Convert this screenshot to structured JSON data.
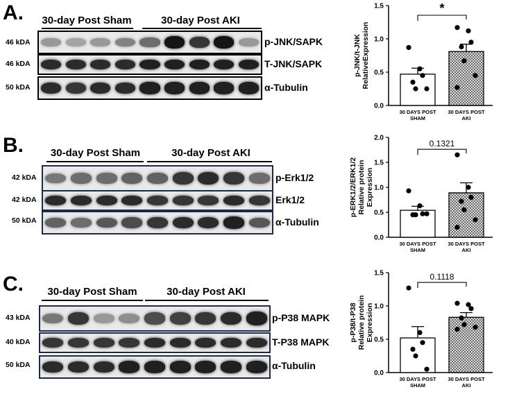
{
  "panels": [
    {
      "letter": "A.",
      "groups": [
        "30-day Post Sham",
        "30-day Post AKI"
      ],
      "blots": [
        {
          "kda": "46 kDA",
          "label": "p-JNK/SAPK",
          "intensities": [
            0.35,
            0.3,
            0.35,
            0.45,
            0.55,
            0.95,
            0.8,
            0.95,
            0.35
          ]
        },
        {
          "kda": "46 kDA",
          "label": "T-JNK/SAPK",
          "intensities": [
            0.85,
            0.85,
            0.85,
            0.85,
            0.9,
            0.9,
            0.9,
            0.9,
            0.9
          ]
        },
        {
          "kda": "50 kDA",
          "label": "α-Tubulin",
          "intensities": [
            0.85,
            0.8,
            0.85,
            0.85,
            0.9,
            0.9,
            0.9,
            0.9,
            0.9
          ]
        }
      ]
    },
    {
      "letter": "B.",
      "groups": [
        "30-day Post Sham",
        "30-day Post AKI"
      ],
      "blots": [
        {
          "kda": "42 kDA",
          "label": "p-Erk1/2",
          "intensities": [
            0.5,
            0.55,
            0.55,
            0.6,
            0.6,
            0.8,
            0.85,
            0.8,
            0.55
          ]
        },
        {
          "kda": "42 kDA",
          "label": "Erk1/2",
          "intensities": [
            0.85,
            0.85,
            0.85,
            0.85,
            0.8,
            0.8,
            0.8,
            0.85,
            0.8
          ]
        },
        {
          "kda": "50 kDA",
          "label": "α-Tubulin",
          "intensities": [
            0.6,
            0.55,
            0.65,
            0.7,
            0.8,
            0.85,
            0.85,
            0.9,
            0.65
          ]
        }
      ]
    },
    {
      "letter": "C.",
      "groups": [
        "30-day Post Sham",
        "30-day Post AKI"
      ],
      "blots": [
        {
          "kda": "43 kDA",
          "label": "p-P38 MAPK",
          "intensities": [
            0.5,
            0.8,
            0.35,
            0.4,
            0.7,
            0.75,
            0.8,
            0.85,
            0.9
          ]
        },
        {
          "kda": "40 kDA",
          "label": "T-P38 MAPK",
          "intensities": [
            0.8,
            0.8,
            0.8,
            0.8,
            0.85,
            0.85,
            0.85,
            0.85,
            0.85
          ]
        },
        {
          "kda": "50 kDA",
          "label": "α-Tubulin",
          "intensities": [
            0.85,
            0.85,
            0.85,
            0.9,
            0.9,
            0.9,
            0.9,
            0.9,
            0.9
          ]
        }
      ]
    }
  ],
  "chart_data": [
    {
      "type": "bar",
      "categories": [
        "30 DAYS POST SHAM",
        "30 DAYS POST AKI"
      ],
      "category_lines": [
        [
          "30 DAYS POST",
          "SHAM"
        ],
        [
          "30 DAYS POST",
          "AKI"
        ]
      ],
      "values": [
        0.47,
        0.81
      ],
      "errors": [
        0.09,
        0.11
      ],
      "points": [
        [
          0.87,
          0.55,
          0.45,
          0.35,
          0.25,
          0.25
        ],
        [
          1.17,
          1.12,
          0.95,
          0.88,
          0.67,
          0.45,
          0.27
        ]
      ],
      "ylabel_lines": [
        "p-JNK/t-JNK",
        "RelativeExpression"
      ],
      "ylim": [
        0,
        1.5
      ],
      "yticks": [
        0.0,
        0.5,
        1.0,
        1.5
      ],
      "ytick_labels": [
        "0.0",
        "0.5",
        "1.0",
        "1.5"
      ],
      "significance": "*",
      "fills": [
        "#ffffff",
        "hatch"
      ]
    },
    {
      "type": "bar",
      "categories": [
        "30 DAYS POST SHAM",
        "30 DAYS POST AKI"
      ],
      "category_lines": [
        [
          "30 DAYS POST",
          "SHAM"
        ],
        [
          "30 DAYS POST",
          "AKI"
        ]
      ],
      "values": [
        0.54,
        0.89
      ],
      "errors": [
        0.08,
        0.2
      ],
      "points": [
        [
          0.93,
          0.63,
          0.47,
          0.45,
          0.45,
          0.47
        ],
        [
          1.65,
          1.0,
          0.8,
          0.72,
          0.55,
          0.35,
          0.2
        ]
      ],
      "ylabel_lines": [
        "p-ERK1/2/ERK1/2",
        "Relative protein",
        "Expression"
      ],
      "ylim": [
        0,
        2.0
      ],
      "yticks": [
        0.0,
        0.5,
        1.0,
        1.5,
        2.0
      ],
      "ytick_labels": [
        "0.0",
        "0.5",
        "1.0",
        "1.5",
        "2.0"
      ],
      "significance": "0.1321",
      "fills": [
        "#ffffff",
        "hatch"
      ]
    },
    {
      "type": "bar",
      "categories": [
        "30 DAYS POST SHAM",
        "30 DAYS POST AKI"
      ],
      "category_lines": [
        [
          "30 DAYS POST",
          "SHAM"
        ],
        [
          "30 DAYS POST",
          "AKI"
        ]
      ],
      "values": [
        0.52,
        0.83
      ],
      "errors": [
        0.17,
        0.07
      ],
      "points": [
        [
          1.27,
          0.6,
          0.45,
          0.35,
          0.25,
          0.05
        ],
        [
          1.04,
          1.02,
          0.96,
          0.82,
          0.72,
          0.68,
          0.65
        ]
      ],
      "ylabel_lines": [
        "p-P38/t-P38",
        "Relative protein",
        "Expression"
      ],
      "ylim": [
        0,
        1.5
      ],
      "yticks": [
        0.0,
        0.5,
        1.0,
        1.5
      ],
      "ytick_labels": [
        "0.0",
        "0.5",
        "1.0",
        "1.5"
      ],
      "significance": "0.1118",
      "fills": [
        "#ffffff",
        "hatch"
      ]
    }
  ]
}
